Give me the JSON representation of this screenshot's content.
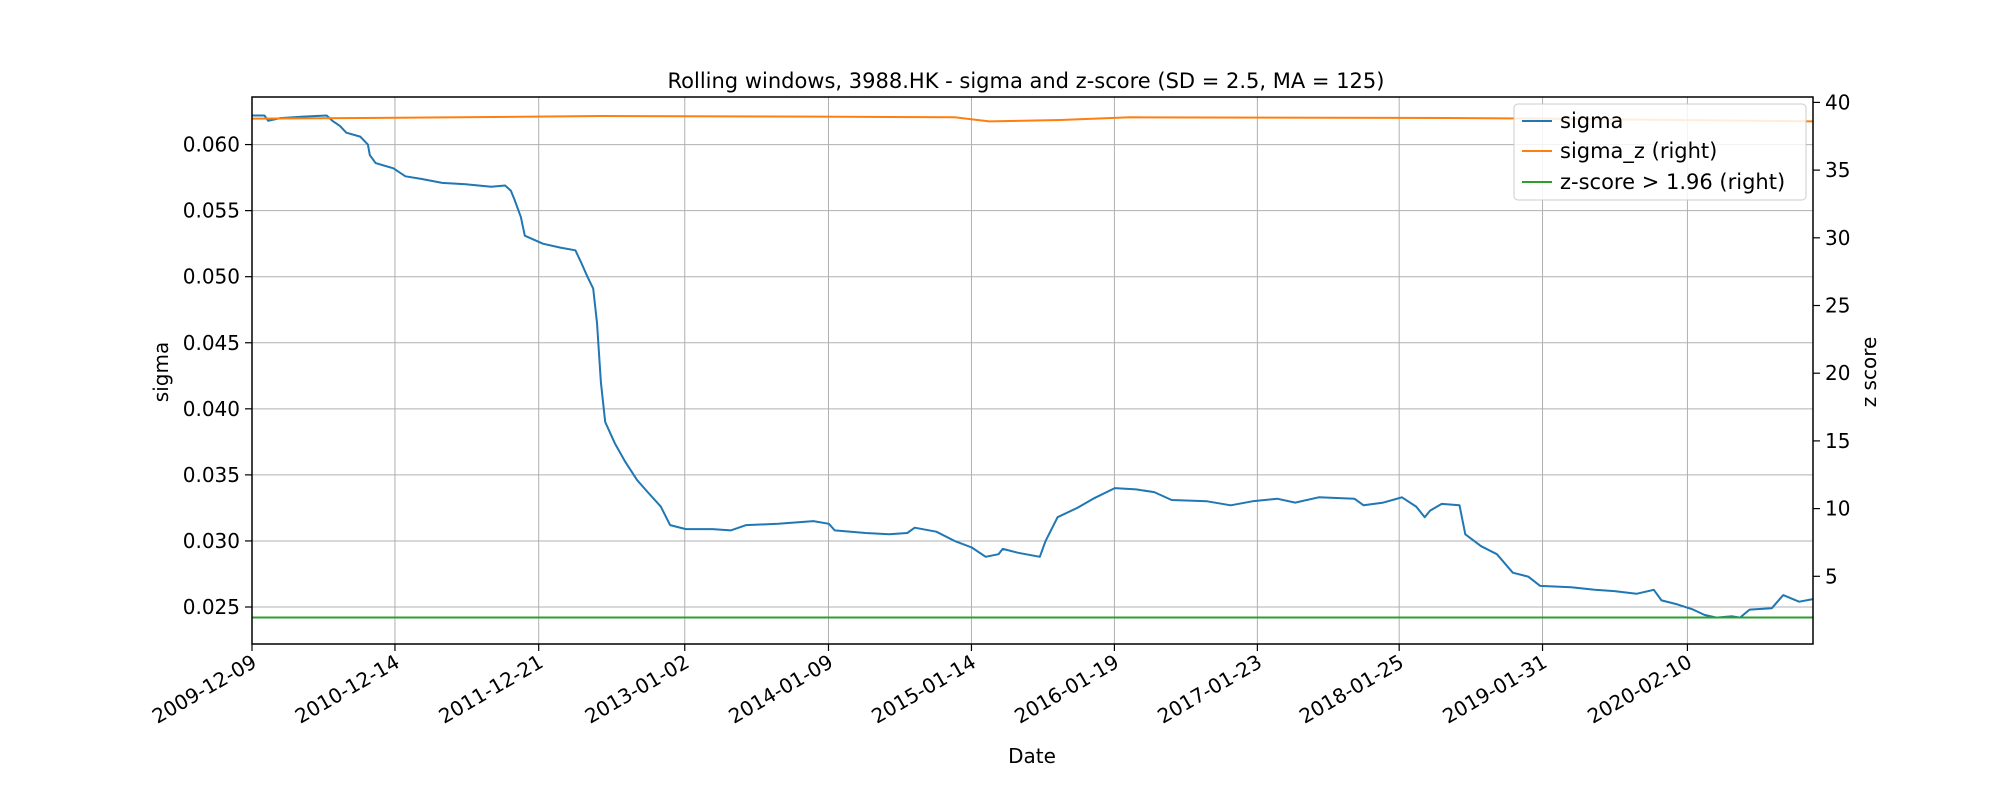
{
  "chart_data": {
    "type": "line",
    "title": "Rolling windows, 3988.HK - sigma and z-score (SD = 2.5, MA = 125)",
    "xlabel": "Date",
    "ylabel": "sigma",
    "y2label": "z score",
    "x_tick_labels": [
      "2009-12-09",
      "2010-12-14",
      "2011-12-21",
      "2013-01-02",
      "2014-01-09",
      "2015-01-14",
      "2016-01-19",
      "2017-01-23",
      "2018-01-25",
      "2019-01-31",
      "2020-02-10"
    ],
    "xlim": [
      "2009-12-09",
      "2020-12-31"
    ],
    "ylim": [
      0.0222,
      0.0636
    ],
    "y_ticks": [
      "0.025",
      "0.030",
      "0.035",
      "0.040",
      "0.045",
      "0.050",
      "0.055",
      "0.060"
    ],
    "y2lim": [
      0.0,
      40.4
    ],
    "y2_ticks": [
      "5",
      "10",
      "15",
      "20",
      "25",
      "30",
      "35",
      "40"
    ],
    "grid": true,
    "legend_position": "top-right",
    "colors": {
      "sigma": "#1f77b4",
      "sigma_z": "#ff7f0e",
      "threshold": "#2ca02c"
    },
    "series": [
      {
        "name": "sigma",
        "axis": "left",
        "points": [
          [
            "2009-12-09",
            0.0622
          ],
          [
            "2010-01-10",
            0.0622
          ],
          [
            "2010-01-20",
            0.0618
          ],
          [
            "2010-02-20",
            0.062
          ],
          [
            "2010-04-15",
            0.0621
          ],
          [
            "2010-06-20",
            0.0622
          ],
          [
            "2010-07-05",
            0.0618
          ],
          [
            "2010-07-25",
            0.0614
          ],
          [
            "2010-08-10",
            0.0609
          ],
          [
            "2010-09-15",
            0.0606
          ],
          [
            "2010-10-05",
            0.06
          ],
          [
            "2010-10-10",
            0.0592
          ],
          [
            "2010-10-25",
            0.0586
          ],
          [
            "2010-12-10",
            0.0582
          ],
          [
            "2011-01-10",
            0.0576
          ],
          [
            "2011-02-20",
            0.0574
          ],
          [
            "2011-04-15",
            0.0571
          ],
          [
            "2011-06-15",
            0.057
          ],
          [
            "2011-08-20",
            0.0568
          ],
          [
            "2011-09-25",
            0.0569
          ],
          [
            "2011-10-10",
            0.0565
          ],
          [
            "2011-10-20",
            0.0558
          ],
          [
            "2011-11-05",
            0.0545
          ],
          [
            "2011-11-15",
            0.0531
          ],
          [
            "2011-12-01",
            0.0529
          ],
          [
            "2012-01-01",
            0.0525
          ],
          [
            "2012-02-15",
            0.0522
          ],
          [
            "2012-03-25",
            0.052
          ],
          [
            "2012-04-10",
            0.051
          ],
          [
            "2012-04-25",
            0.05
          ],
          [
            "2012-05-10",
            0.0491
          ],
          [
            "2012-05-20",
            0.0465
          ],
          [
            "2012-05-30",
            0.042
          ],
          [
            "2012-06-10",
            0.039
          ],
          [
            "2012-07-05",
            0.0374
          ],
          [
            "2012-08-01",
            0.036
          ],
          [
            "2012-09-01",
            0.0346
          ],
          [
            "2012-10-01",
            0.0336
          ],
          [
            "2012-11-01",
            0.0326
          ],
          [
            "2012-11-25",
            0.0312
          ],
          [
            "2013-01-05",
            0.0309
          ],
          [
            "2013-03-15",
            0.0309
          ],
          [
            "2013-05-01",
            0.0308
          ],
          [
            "2013-06-10",
            0.0312
          ],
          [
            "2013-09-01",
            0.0313
          ],
          [
            "2013-12-01",
            0.0315
          ],
          [
            "2014-01-10",
            0.0313
          ],
          [
            "2014-01-25",
            0.0308
          ],
          [
            "2014-04-15",
            0.0306
          ],
          [
            "2014-06-15",
            0.0305
          ],
          [
            "2014-08-01",
            0.0306
          ],
          [
            "2014-08-20",
            0.031
          ],
          [
            "2014-10-15",
            0.0307
          ],
          [
            "2014-12-01",
            0.03
          ],
          [
            "2015-01-15",
            0.0295
          ],
          [
            "2015-02-20",
            0.0288
          ],
          [
            "2015-03-25",
            0.029
          ],
          [
            "2015-04-05",
            0.0294
          ],
          [
            "2015-05-15",
            0.0291
          ],
          [
            "2015-07-10",
            0.0288
          ],
          [
            "2015-07-25",
            0.03
          ],
          [
            "2015-08-25",
            0.0318
          ],
          [
            "2015-10-15",
            0.0325
          ],
          [
            "2015-11-25",
            0.0332
          ],
          [
            "2016-01-20",
            0.034
          ],
          [
            "2016-03-15",
            0.0339
          ],
          [
            "2016-05-01",
            0.0337
          ],
          [
            "2016-06-15",
            0.0331
          ],
          [
            "2016-09-15",
            0.033
          ],
          [
            "2016-11-15",
            0.0327
          ],
          [
            "2017-01-10",
            0.033
          ],
          [
            "2017-03-15",
            0.0332
          ],
          [
            "2017-05-01",
            0.0329
          ],
          [
            "2017-07-01",
            0.0333
          ],
          [
            "2017-10-01",
            0.0332
          ],
          [
            "2017-10-25",
            0.0327
          ],
          [
            "2017-12-15",
            0.0329
          ],
          [
            "2018-02-01",
            0.0333
          ],
          [
            "2018-03-10",
            0.0326
          ],
          [
            "2018-04-01",
            0.0318
          ],
          [
            "2018-04-15",
            0.0323
          ],
          [
            "2018-05-15",
            0.0328
          ],
          [
            "2018-06-30",
            0.0327
          ],
          [
            "2018-07-15",
            0.0305
          ],
          [
            "2018-08-25",
            0.0296
          ],
          [
            "2018-10-05",
            0.029
          ],
          [
            "2018-11-15",
            0.0276
          ],
          [
            "2018-12-25",
            0.0273
          ],
          [
            "2019-01-25",
            0.0266
          ],
          [
            "2019-04-15",
            0.0265
          ],
          [
            "2019-06-15",
            0.0263
          ],
          [
            "2019-08-05",
            0.0262
          ],
          [
            "2019-10-01",
            0.026
          ],
          [
            "2019-11-15",
            0.0263
          ],
          [
            "2019-12-05",
            0.0255
          ],
          [
            "2020-01-15",
            0.0252
          ],
          [
            "2020-02-25",
            0.0248
          ],
          [
            "2020-03-25",
            0.0244
          ],
          [
            "2020-04-25",
            0.0242
          ],
          [
            "2020-06-05",
            0.0243
          ],
          [
            "2020-06-25",
            0.0242
          ],
          [
            "2020-07-20",
            0.0248
          ],
          [
            "2020-09-15",
            0.0249
          ],
          [
            "2020-10-15",
            0.0259
          ],
          [
            "2020-11-25",
            0.0254
          ],
          [
            "2020-12-31",
            0.0256
          ]
        ]
      },
      {
        "name": "sigma_z (right)",
        "axis": "right",
        "points": [
          [
            "2009-12-09",
            38.8
          ],
          [
            "2011-06-01",
            38.9
          ],
          [
            "2012-06-01",
            39.0
          ],
          [
            "2013-12-01",
            38.95
          ],
          [
            "2014-12-01",
            38.9
          ],
          [
            "2015-03-01",
            38.6
          ],
          [
            "2015-09-01",
            38.7
          ],
          [
            "2016-03-01",
            38.9
          ],
          [
            "2018-06-01",
            38.85
          ],
          [
            "2019-03-01",
            38.8
          ],
          [
            "2020-12-31",
            38.6
          ]
        ]
      },
      {
        "name": "z-score > 1.96 (right)",
        "axis": "right",
        "points": [
          [
            "2009-12-09",
            1.96
          ],
          [
            "2020-12-31",
            1.96
          ]
        ]
      }
    ]
  }
}
